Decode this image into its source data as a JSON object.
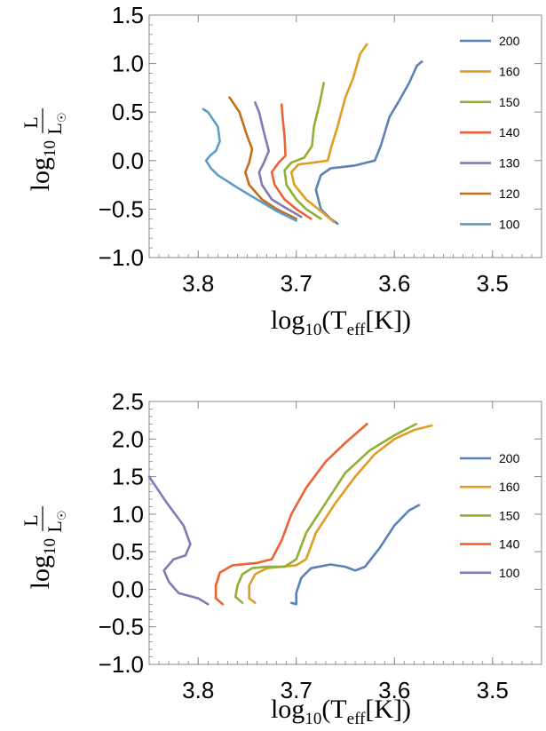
{
  "chart_data": [
    {
      "type": "line",
      "title": "",
      "xlabel": "",
      "ylabel": "",
      "x_reversed": true,
      "xlim": [
        3.45,
        3.85
      ],
      "ylim": [
        -1.0,
        1.5
      ],
      "xticks": [
        "3.8",
        "3.7",
        "3.6",
        "3.5"
      ],
      "yticks": [
        "1.5",
        "1.0",
        "0.5",
        "0.0",
        "−0.5",
        "−1.0"
      ],
      "legend_position": "right",
      "series": [
        {
          "name": "200",
          "color": "#5E81B5",
          "points": [
            [
              3.658,
              -0.65
            ],
            [
              3.665,
              -0.6
            ],
            [
              3.675,
              -0.5
            ],
            [
              3.68,
              -0.3
            ],
            [
              3.675,
              -0.15
            ],
            [
              3.665,
              -0.08
            ],
            [
              3.64,
              -0.05
            ],
            [
              3.62,
              0.0
            ],
            [
              3.614,
              0.15
            ],
            [
              3.605,
              0.45
            ],
            [
              3.595,
              0.62
            ],
            [
              3.585,
              0.8
            ],
            [
              3.577,
              0.98
            ],
            [
              3.572,
              1.02
            ]
          ]
        },
        {
          "name": "160",
          "color": "#E19C24",
          "points": [
            [
              3.662,
              -0.63
            ],
            [
              3.675,
              -0.52
            ],
            [
              3.69,
              -0.4
            ],
            [
              3.702,
              -0.25
            ],
            [
              3.705,
              -0.12
            ],
            [
              3.698,
              -0.04
            ],
            [
              3.682,
              -0.02
            ],
            [
              3.668,
              0.0
            ],
            [
              3.664,
              0.15
            ],
            [
              3.658,
              0.35
            ],
            [
              3.65,
              0.65
            ],
            [
              3.642,
              0.85
            ],
            [
              3.635,
              1.1
            ],
            [
              3.628,
              1.2
            ]
          ]
        },
        {
          "name": "150",
          "color": "#8FB032",
          "points": [
            [
              3.675,
              -0.6
            ],
            [
              3.69,
              -0.5
            ],
            [
              3.7,
              -0.4
            ],
            [
              3.71,
              -0.25
            ],
            [
              3.712,
              -0.1
            ],
            [
              3.705,
              -0.02
            ],
            [
              3.692,
              0.03
            ],
            [
              3.684,
              0.15
            ],
            [
              3.682,
              0.35
            ],
            [
              3.676,
              0.6
            ],
            [
              3.672,
              0.8
            ]
          ]
        },
        {
          "name": "140",
          "color": "#EB6235",
          "points": [
            [
              3.685,
              -0.6
            ],
            [
              3.7,
              -0.5
            ],
            [
              3.712,
              -0.4
            ],
            [
              3.722,
              -0.25
            ],
            [
              3.725,
              -0.12
            ],
            [
              3.718,
              -0.02
            ],
            [
              3.711,
              0.05
            ],
            [
              3.712,
              0.25
            ],
            [
              3.714,
              0.45
            ],
            [
              3.715,
              0.58
            ]
          ]
        },
        {
          "name": "130",
          "color": "#8778B3",
          "points": [
            [
              3.695,
              -0.58
            ],
            [
              3.712,
              -0.48
            ],
            [
              3.725,
              -0.4
            ],
            [
              3.735,
              -0.25
            ],
            [
              3.738,
              -0.12
            ],
            [
              3.733,
              -0.02
            ],
            [
              3.728,
              0.1
            ],
            [
              3.732,
              0.25
            ],
            [
              3.738,
              0.5
            ],
            [
              3.742,
              0.6
            ]
          ]
        },
        {
          "name": "120",
          "color": "#C56E1A",
          "points": [
            [
              3.7,
              -0.6
            ],
            [
              3.72,
              -0.5
            ],
            [
              3.735,
              -0.4
            ],
            [
              3.748,
              -0.25
            ],
            [
              3.752,
              -0.12
            ],
            [
              3.748,
              -0.02
            ],
            [
              3.745,
              0.12
            ],
            [
              3.75,
              0.25
            ],
            [
              3.758,
              0.5
            ],
            [
              3.768,
              0.65
            ]
          ]
        },
        {
          "name": "100",
          "color": "#5D9EC7",
          "points": [
            [
              3.7,
              -0.62
            ],
            [
              3.72,
              -0.52
            ],
            [
              3.74,
              -0.4
            ],
            [
              3.76,
              -0.28
            ],
            [
              3.78,
              -0.15
            ],
            [
              3.787,
              -0.08
            ],
            [
              3.792,
              0.0
            ],
            [
              3.788,
              0.05
            ],
            [
              3.782,
              0.1
            ],
            [
              3.778,
              0.2
            ],
            [
              3.78,
              0.35
            ],
            [
              3.79,
              0.5
            ],
            [
              3.795,
              0.53
            ]
          ]
        }
      ]
    },
    {
      "type": "line",
      "title": "",
      "xlabel": "",
      "ylabel": "",
      "x_reversed": true,
      "xlim": [
        3.45,
        3.85
      ],
      "ylim": [
        -1.0,
        2.5
      ],
      "xticks": [
        "3.8",
        "3.7",
        "3.6",
        "3.5"
      ],
      "yticks": [
        "2.5",
        "2.0",
        "1.5",
        "1.0",
        "0.5",
        "0.0",
        "−0.5",
        "−1.0"
      ],
      "legend_position": "right",
      "series": [
        {
          "name": "200",
          "color": "#5E81B5",
          "points": [
            [
              3.705,
              -0.18
            ],
            [
              3.7,
              -0.2
            ],
            [
              3.7,
              -0.05
            ],
            [
              3.695,
              0.15
            ],
            [
              3.685,
              0.28
            ],
            [
              3.665,
              0.33
            ],
            [
              3.65,
              0.3
            ],
            [
              3.64,
              0.25
            ],
            [
              3.63,
              0.3
            ],
            [
              3.615,
              0.55
            ],
            [
              3.6,
              0.85
            ],
            [
              3.585,
              1.05
            ],
            [
              3.575,
              1.12
            ]
          ]
        },
        {
          "name": "160",
          "color": "#E19C24",
          "points": [
            [
              3.742,
              -0.18
            ],
            [
              3.748,
              -0.12
            ],
            [
              3.748,
              0.05
            ],
            [
              3.742,
              0.2
            ],
            [
              3.73,
              0.28
            ],
            [
              3.715,
              0.3
            ],
            [
              3.7,
              0.32
            ],
            [
              3.69,
              0.4
            ],
            [
              3.68,
              0.75
            ],
            [
              3.66,
              1.15
            ],
            [
              3.64,
              1.5
            ],
            [
              3.62,
              1.8
            ],
            [
              3.6,
              2.0
            ],
            [
              3.58,
              2.12
            ],
            [
              3.562,
              2.18
            ]
          ]
        },
        {
          "name": "150",
          "color": "#8FB032",
          "points": [
            [
              3.755,
              -0.18
            ],
            [
              3.762,
              -0.1
            ],
            [
              3.76,
              0.05
            ],
            [
              3.755,
              0.2
            ],
            [
              3.745,
              0.28
            ],
            [
              3.73,
              0.3
            ],
            [
              3.712,
              0.3
            ],
            [
              3.7,
              0.4
            ],
            [
              3.69,
              0.75
            ],
            [
              3.67,
              1.15
            ],
            [
              3.65,
              1.55
            ],
            [
              3.625,
              1.85
            ],
            [
              3.6,
              2.05
            ],
            [
              3.578,
              2.2
            ]
          ]
        },
        {
          "name": "140",
          "color": "#EB6235",
          "points": [
            [
              3.775,
              -0.2
            ],
            [
              3.782,
              -0.12
            ],
            [
              3.782,
              0.05
            ],
            [
              3.778,
              0.22
            ],
            [
              3.765,
              0.32
            ],
            [
              3.74,
              0.35
            ],
            [
              3.725,
              0.4
            ],
            [
              3.715,
              0.65
            ],
            [
              3.705,
              1.0
            ],
            [
              3.69,
              1.35
            ],
            [
              3.67,
              1.7
            ],
            [
              3.65,
              1.95
            ],
            [
              3.628,
              2.2
            ]
          ]
        },
        {
          "name": "100",
          "color": "#8778B3",
          "points": [
            [
              3.79,
              -0.2
            ],
            [
              3.8,
              -0.12
            ],
            [
              3.82,
              -0.05
            ],
            [
              3.83,
              0.1
            ],
            [
              3.835,
              0.25
            ],
            [
              3.825,
              0.4
            ],
            [
              3.813,
              0.45
            ],
            [
              3.808,
              0.6
            ],
            [
              3.815,
              0.85
            ],
            [
              3.832,
              1.15
            ],
            [
              3.85,
              1.5
            ]
          ]
        }
      ]
    }
  ]
}
